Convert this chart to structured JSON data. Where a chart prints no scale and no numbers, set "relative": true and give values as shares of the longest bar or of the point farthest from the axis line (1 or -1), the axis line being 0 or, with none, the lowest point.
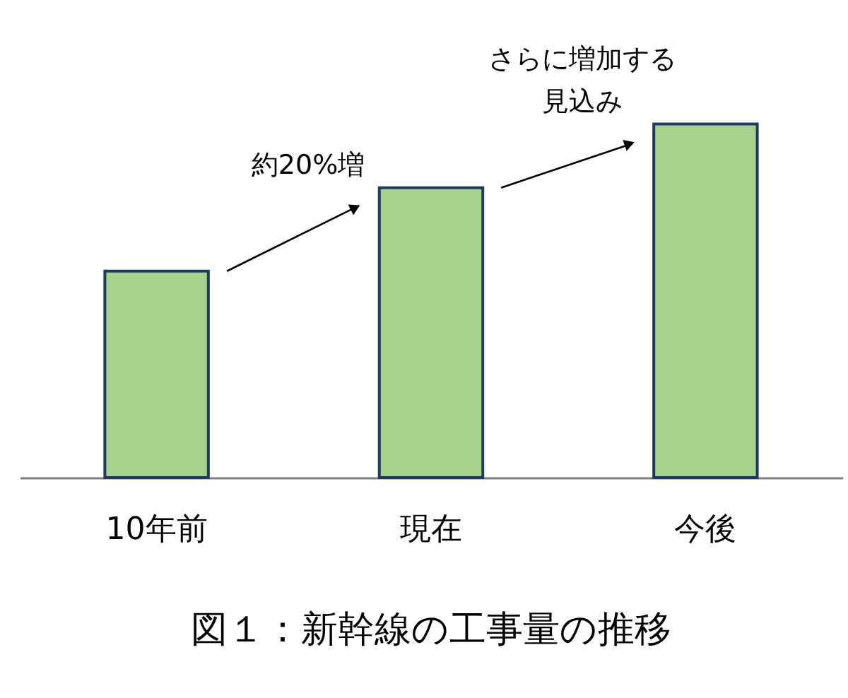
{
  "chart_data": {
    "type": "bar",
    "relative": true,
    "title": "図１：新幹線の工事量の推移",
    "categories": [
      "10年前",
      "現在",
      "今後"
    ],
    "series": [
      {
        "color": "#a9d18e",
        "values": [
          0.584,
          0.82,
          1
        ]
      }
    ],
    "annotations": [
      "約20%増",
      "さらに増加する見込み"
    ],
    "grid": false
  }
}
